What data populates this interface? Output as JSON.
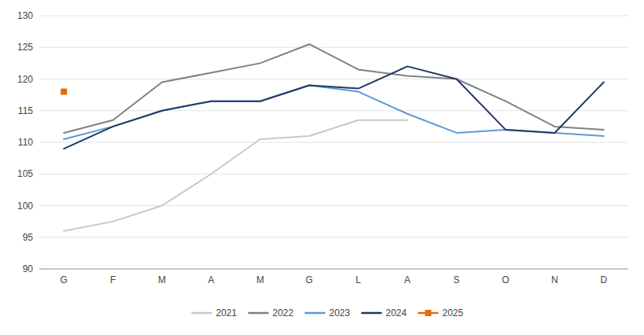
{
  "chart_data": {
    "type": "line",
    "categories": [
      "G",
      "F",
      "M",
      "A",
      "M",
      "G",
      "L",
      "A",
      "S",
      "O",
      "N",
      "D"
    ],
    "series": [
      {
        "name": "2021",
        "color": "#c8c8c8",
        "values": [
          96.0,
          97.5,
          100.0,
          105.0,
          110.5,
          111.0,
          113.5,
          113.5,
          null,
          null,
          null,
          null
        ]
      },
      {
        "name": "2022",
        "color": "#808080",
        "values": [
          111.5,
          113.5,
          119.5,
          121.0,
          122.5,
          125.5,
          121.5,
          120.5,
          120.0,
          116.5,
          112.5,
          112.0
        ]
      },
      {
        "name": "2023",
        "color": "#5b9bd5",
        "values": [
          110.5,
          112.5,
          115.0,
          116.5,
          116.5,
          119.0,
          118.0,
          114.5,
          111.5,
          112.0,
          111.5,
          111.0
        ]
      },
      {
        "name": "2024",
        "color": "#1f3864",
        "values": [
          109.0,
          112.5,
          115.0,
          116.5,
          116.5,
          119.0,
          118.5,
          122.0,
          120.0,
          112.0,
          111.5,
          119.5
        ]
      },
      {
        "name": "2025",
        "color": "#e36c09",
        "marker": "square",
        "values": [
          118.0,
          null,
          null,
          null,
          null,
          null,
          null,
          null,
          null,
          null,
          null,
          null
        ]
      }
    ],
    "ylim": [
      90,
      130
    ],
    "yticks": [
      90,
      95,
      100,
      105,
      110,
      115,
      120,
      125,
      130
    ],
    "grid": true,
    "legend": "bottom"
  }
}
